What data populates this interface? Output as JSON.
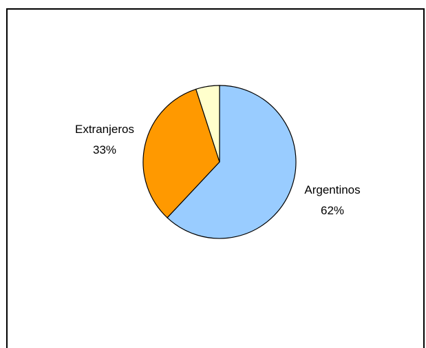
{
  "chart_data": {
    "type": "pie",
    "title": "",
    "slices": [
      {
        "label": "Argentinos",
        "value_text": "62%",
        "value": 62,
        "color": "#99ccff"
      },
      {
        "label": "Extranjeros",
        "value_text": "33%",
        "value": 33,
        "color": "#ff9900"
      },
      {
        "label": "",
        "value_text": "",
        "value": 5,
        "color": "#ffffcc"
      }
    ],
    "start_angle_deg": 0,
    "direction": "clockwise",
    "legend": "none",
    "border_color": "#000000"
  }
}
